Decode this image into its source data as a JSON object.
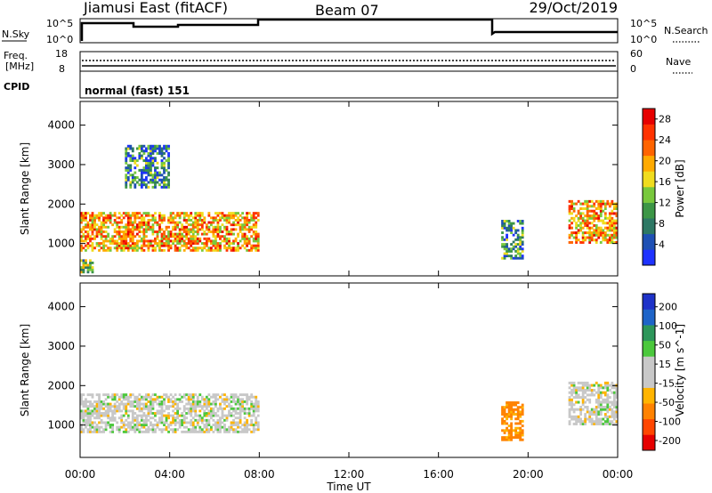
{
  "header": {
    "station": "Jiamusi East (fitACF)",
    "beam": "Beam 07",
    "date": "29/Oct/2019"
  },
  "nsky_panel": {
    "left_label": "N.Sky",
    "right_label": "N.Search",
    "left_ticks": [
      "10^5",
      "10^0"
    ],
    "right_ticks": [
      "10^5",
      "10^0"
    ]
  },
  "freq_panel": {
    "left_label_line1": "Freq.",
    "left_label_line2": "[MHz]",
    "right_label": "Nave",
    "left_ticks": [
      "18",
      "8"
    ],
    "right_ticks": [
      "60",
      "0"
    ]
  },
  "cpid_panel": {
    "label": "CPID",
    "value": "normal (fast) 151"
  },
  "colors": {
    "power_scale": [
      "#1e32ff",
      "#1e50b4",
      "#2d7864",
      "#3c9646",
      "#78c83c",
      "#f0dc1e",
      "#ffaa00",
      "#ff6400",
      "#ff3200",
      "#e60000"
    ],
    "velocity_scale": [
      "#1e32c8",
      "#1e64c8",
      "#2d965a",
      "#4bc83c",
      "#c8c8c8",
      "#c8c8c8",
      "#ffb400",
      "#ff8200",
      "#ff4600",
      "#e60000"
    ]
  },
  "chart_data": [
    {
      "type": "heatmap",
      "name": "power",
      "ylabel": "Slant Range [km]",
      "yticks": [
        "1000",
        "2000",
        "3000",
        "4000"
      ],
      "ylim": [
        180,
        4600
      ],
      "colorbar_label": "Power [dB]",
      "colorbar_ticks": [
        "4",
        "8",
        "12",
        "16",
        "20",
        "24",
        "28"
      ],
      "colorbar_range": [
        0,
        30
      ],
      "echo_regions": [
        {
          "t_start": 0.0,
          "t_end": 8.0,
          "range_km": [
            800,
            1800
          ],
          "value": 20
        },
        {
          "t_start": 0.0,
          "t_end": 0.6,
          "range_km": [
            250,
            600
          ],
          "value": 12
        },
        {
          "t_start": 2.0,
          "t_end": 4.0,
          "range_km": [
            2400,
            3500
          ],
          "value": 8
        },
        {
          "t_start": 18.8,
          "t_end": 19.8,
          "range_km": [
            600,
            1600
          ],
          "value": 10
        },
        {
          "t_start": 21.8,
          "t_end": 24.0,
          "range_km": [
            1000,
            2100
          ],
          "value": 20
        }
      ]
    },
    {
      "type": "heatmap",
      "name": "velocity",
      "ylabel": "Slant Range [km]",
      "yticks": [
        "1000",
        "2000",
        "3000",
        "4000"
      ],
      "ylim": [
        180,
        4600
      ],
      "colorbar_label": "Velocity [m s^-1]",
      "colorbar_ticks": [
        "200",
        "100",
        "50",
        "15",
        "-15",
        "-50",
        "-100",
        "-200"
      ],
      "echo_regions": [
        {
          "t_start": 0.0,
          "t_end": 8.0,
          "range_km": [
            800,
            1800
          ],
          "value": 0
        },
        {
          "t_start": 18.8,
          "t_end": 19.8,
          "range_km": [
            600,
            1600
          ],
          "value": -60
        },
        {
          "t_start": 21.8,
          "t_end": 24.0,
          "range_km": [
            1000,
            2100
          ],
          "value": 0
        }
      ]
    }
  ],
  "xaxis": {
    "label": "Time UT",
    "ticks": [
      "00:00",
      "04:00",
      "08:00",
      "12:00",
      "16:00",
      "20:00",
      "00:00"
    ],
    "range_hours": [
      0,
      24
    ]
  }
}
